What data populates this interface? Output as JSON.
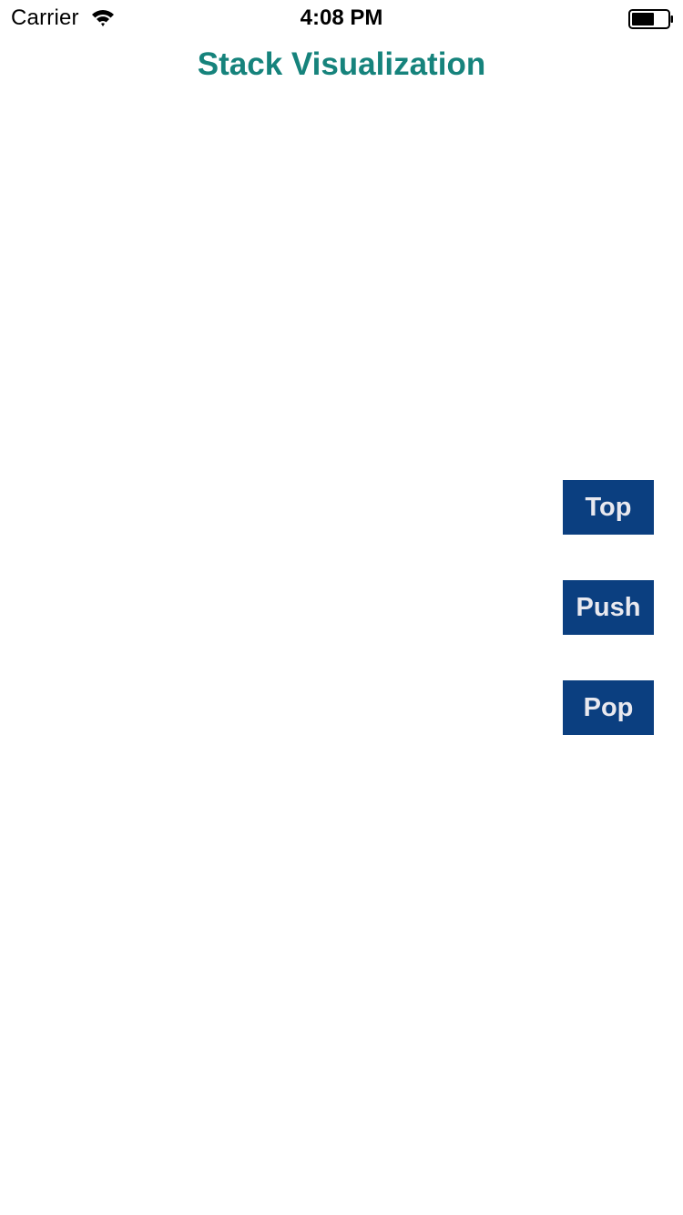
{
  "status_bar": {
    "carrier": "Carrier",
    "time": "4:08 PM",
    "wifi_icon": "wifi-icon",
    "battery_icon": "battery-icon"
  },
  "header": {
    "title": "Stack Visualization",
    "title_color": "#16837c"
  },
  "controls": {
    "top_label": "Top",
    "push_label": "Push",
    "pop_label": "Pop",
    "button_color": "#0b3f80",
    "button_text_color": "#e9e9ef"
  }
}
